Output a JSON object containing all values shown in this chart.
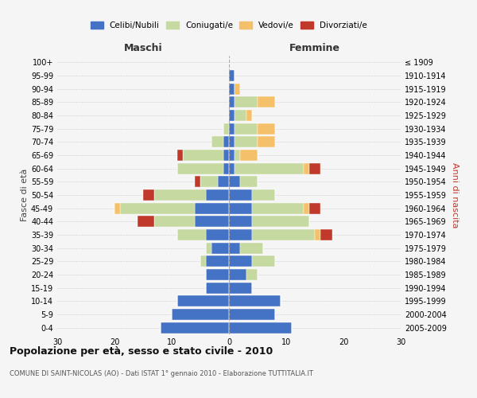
{
  "age_groups": [
    "0-4",
    "5-9",
    "10-14",
    "15-19",
    "20-24",
    "25-29",
    "30-34",
    "35-39",
    "40-44",
    "45-49",
    "50-54",
    "55-59",
    "60-64",
    "65-69",
    "70-74",
    "75-79",
    "80-84",
    "85-89",
    "90-94",
    "95-99",
    "100+"
  ],
  "birth_years": [
    "2005-2009",
    "2000-2004",
    "1995-1999",
    "1990-1994",
    "1985-1989",
    "1980-1984",
    "1975-1979",
    "1970-1974",
    "1965-1969",
    "1960-1964",
    "1955-1959",
    "1950-1954",
    "1945-1949",
    "1940-1944",
    "1935-1939",
    "1930-1934",
    "1925-1929",
    "1920-1924",
    "1915-1919",
    "1910-1914",
    "≤ 1909"
  ],
  "males": {
    "single": [
      12,
      10,
      9,
      4,
      4,
      4,
      3,
      4,
      6,
      6,
      4,
      2,
      1,
      1,
      1,
      0,
      0,
      0,
      0,
      0,
      0
    ],
    "married": [
      0,
      0,
      0,
      0,
      0,
      1,
      1,
      5,
      7,
      13,
      9,
      3,
      8,
      7,
      2,
      1,
      0,
      0,
      0,
      0,
      0
    ],
    "widowed": [
      0,
      0,
      0,
      0,
      0,
      0,
      0,
      0,
      0,
      1,
      0,
      0,
      0,
      0,
      0,
      0,
      0,
      0,
      0,
      0,
      0
    ],
    "divorced": [
      0,
      0,
      0,
      0,
      0,
      0,
      0,
      0,
      3,
      0,
      2,
      1,
      0,
      1,
      0,
      0,
      0,
      0,
      0,
      0,
      0
    ]
  },
  "females": {
    "single": [
      11,
      8,
      9,
      4,
      3,
      4,
      2,
      4,
      4,
      4,
      4,
      2,
      1,
      1,
      1,
      1,
      1,
      1,
      1,
      1,
      0
    ],
    "married": [
      0,
      0,
      0,
      0,
      2,
      4,
      4,
      11,
      10,
      9,
      4,
      3,
      12,
      1,
      4,
      4,
      2,
      4,
      0,
      0,
      0
    ],
    "widowed": [
      0,
      0,
      0,
      0,
      0,
      0,
      0,
      1,
      0,
      1,
      0,
      0,
      1,
      3,
      3,
      3,
      1,
      3,
      1,
      0,
      0
    ],
    "divorced": [
      0,
      0,
      0,
      0,
      0,
      0,
      0,
      2,
      0,
      2,
      0,
      0,
      2,
      0,
      0,
      0,
      0,
      0,
      0,
      0,
      0
    ]
  },
  "colors": {
    "single": "#4472C4",
    "married": "#C5D9A0",
    "widowed": "#F5C06A",
    "divorced": "#C0392B"
  },
  "legend_labels": [
    "Celibi/Nubili",
    "Coniugati/e",
    "Vedovi/e",
    "Divorziati/e"
  ],
  "title": "Popolazione per età, sesso e stato civile - 2010",
  "subtitle": "COMUNE DI SAINT-NICOLAS (AO) - Dati ISTAT 1° gennaio 2010 - Elaborazione TUTTITALIA.IT",
  "xlabel_left": "Maschi",
  "xlabel_right": "Femmine",
  "ylabel_left": "Fasce di età",
  "ylabel_right": "Anni di nascita",
  "xlim": 30,
  "background_color": "#f5f5f5"
}
